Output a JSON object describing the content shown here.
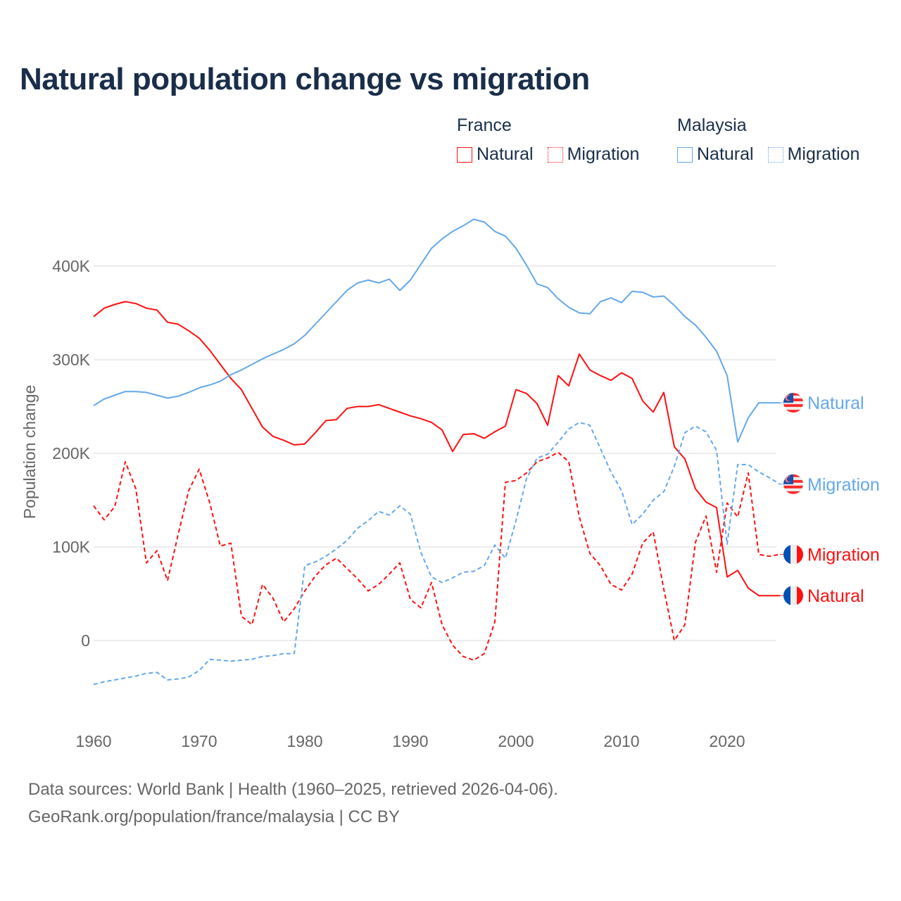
{
  "colors": {
    "france": "#ff1010",
    "malaysia": "#64a8ea",
    "title": "#1a2e4a",
    "axis_text": "#666666",
    "grid": "#e6e6e6"
  },
  "legend": {
    "groups": [
      {
        "country": "France",
        "items": [
          {
            "label": "Natural",
            "style": "solid"
          },
          {
            "label": "Migration",
            "style": "dotted"
          }
        ]
      },
      {
        "country": "Malaysia",
        "items": [
          {
            "label": "Natural",
            "style": "solid"
          },
          {
            "label": "Migration",
            "style": "dotted"
          }
        ]
      }
    ]
  },
  "footer": {
    "line1": "Data sources: World Bank | Health (1960–2025, retrieved 2026-04-06).",
    "line2": "GeoRank.org/population/france/malaysia | CC BY"
  },
  "chart_data": {
    "type": "line",
    "title": "Natural population change vs migration",
    "xlabel": "",
    "ylabel": "Population change",
    "xlim": [
      1960,
      2025
    ],
    "ylim": [
      -75000,
      450000
    ],
    "x_ticks": [
      1960,
      1970,
      1980,
      1990,
      2000,
      2010,
      2020
    ],
    "x_tick_labels": [
      "1960",
      "1970",
      "1980",
      "1990",
      "2000",
      "2010",
      "2020"
    ],
    "y_ticks": [
      0,
      100000,
      200000,
      300000,
      400000
    ],
    "y_tick_labels": [
      "0",
      "100K",
      "200K",
      "300K",
      "400K"
    ],
    "grid": true,
    "legend_position": "top-right",
    "x_start": 1960,
    "series": [
      {
        "name": "Natural",
        "country": "France",
        "flag": "france-flag",
        "dashed": false,
        "end_label": "Natural",
        "values": [
          346,
          355,
          359,
          362,
          360,
          355,
          353,
          340,
          338,
          331,
          323,
          310,
          295,
          280,
          268,
          248,
          228,
          218,
          214,
          209,
          210,
          222,
          235,
          236,
          248,
          250,
          250,
          252,
          248,
          244,
          240,
          237,
          233,
          225,
          202,
          220,
          221,
          216,
          223,
          229,
          268,
          264,
          253,
          230,
          283,
          272,
          306,
          289,
          283,
          278,
          286,
          280,
          256,
          244,
          265,
          207,
          194,
          162,
          148,
          142,
          68,
          75,
          56,
          48,
          48,
          48
        ]
      },
      {
        "name": "Migration",
        "country": "France",
        "flag": "france-flag",
        "dashed": true,
        "end_label": "Migration",
        "values": [
          144,
          129,
          143,
          191,
          162,
          83,
          96,
          64,
          113,
          160,
          183,
          147,
          101,
          104,
          26,
          17,
          60,
          45,
          20,
          34,
          53,
          69,
          81,
          88,
          77,
          66,
          53,
          60,
          71,
          83,
          44,
          35,
          62,
          17,
          -5,
          -17,
          -21,
          -14,
          20,
          169,
          171,
          179,
          191,
          195,
          201,
          191,
          132,
          93,
          80,
          60,
          54,
          71,
          104,
          116,
          55,
          0,
          17,
          105,
          133,
          73,
          147,
          132,
          179,
          92,
          90,
          92
        ]
      },
      {
        "name": "Natural",
        "country": "Malaysia",
        "flag": "malaysia-flag",
        "dashed": false,
        "end_label": "Natural",
        "values": [
          251,
          258,
          262,
          266,
          266,
          265,
          262,
          259,
          261,
          265,
          270,
          273,
          277,
          284,
          289,
          295,
          301,
          306,
          311,
          317,
          326,
          338,
          350,
          362,
          374,
          382,
          385,
          382,
          386,
          374,
          385,
          402,
          419,
          429,
          437,
          443,
          450,
          447,
          437,
          432,
          419,
          401,
          381,
          377,
          365,
          356,
          350,
          349,
          362,
          366,
          361,
          373,
          372,
          367,
          368,
          358,
          346,
          337,
          324,
          309,
          283,
          212,
          238,
          254,
          254,
          254
        ]
      },
      {
        "name": "Migration",
        "country": "Malaysia",
        "flag": "malaysia-flag",
        "dashed": true,
        "end_label": "Migration",
        "values": [
          -47,
          -44,
          -42,
          -40,
          -38,
          -35,
          -34,
          -42,
          -41,
          -39,
          -32,
          -20,
          -21,
          -22,
          -21,
          -20,
          -17,
          -16,
          -14,
          -14,
          80,
          84,
          90,
          98,
          107,
          120,
          128,
          138,
          134,
          144,
          135,
          94,
          68,
          62,
          67,
          73,
          74,
          80,
          102,
          88,
          128,
          173,
          195,
          199,
          212,
          226,
          233,
          230,
          205,
          180,
          160,
          124,
          135,
          150,
          159,
          186,
          222,
          229,
          223,
          203,
          103,
          188,
          188,
          180,
          174,
          167
        ]
      }
    ],
    "value_unit": "thousands"
  }
}
